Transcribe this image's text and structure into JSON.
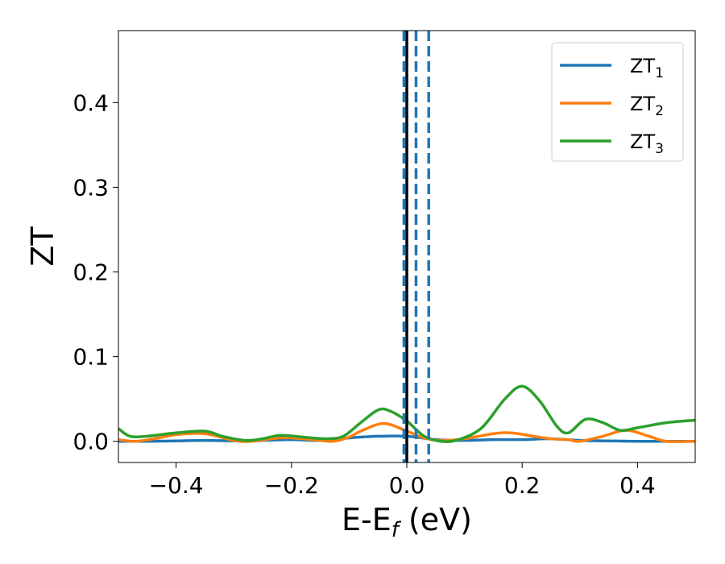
{
  "chart_data": {
    "type": "line",
    "xlabel": "E-E_f (eV)",
    "xlabel_parts": {
      "base": "E-E",
      "sub": "f",
      "tail": " (eV)"
    },
    "ylabel": "ZT",
    "xlim": [
      -0.5,
      0.5
    ],
    "ylim": [
      -0.025,
      0.485
    ],
    "xticks": [
      -0.4,
      -0.2,
      0.0,
      0.2,
      0.4
    ],
    "xtick_labels": [
      "−0.4",
      "−0.2",
      "0.0",
      "0.2",
      "0.4"
    ],
    "yticks": [
      0.0,
      0.1,
      0.2,
      0.3,
      0.4
    ],
    "ytick_labels": [
      "0.0",
      "0.1",
      "0.2",
      "0.3",
      "0.4"
    ],
    "grid": false,
    "legend_position": "top-right",
    "vertical_lines": [
      {
        "x": 0.0,
        "style": "solid",
        "color": "#000000"
      },
      {
        "x": -0.005,
        "style": "dashed",
        "color": "#1f77b4"
      },
      {
        "x": 0.016,
        "style": "dashed",
        "color": "#1f77b4"
      },
      {
        "x": 0.038,
        "style": "dashed",
        "color": "#1f77b4"
      }
    ],
    "series": [
      {
        "name": "ZT_1",
        "label_base": "ZT",
        "label_sub": "1",
        "color": "#1f77b4",
        "x": [
          -0.5,
          -0.45,
          -0.4,
          -0.35,
          -0.3,
          -0.25,
          -0.2,
          -0.15,
          -0.1,
          -0.05,
          0.0,
          0.05,
          0.1,
          0.15,
          0.2,
          0.25,
          0.3,
          0.35,
          0.4,
          0.45,
          0.5
        ],
        "y": [
          0.0,
          0.0,
          0.0005,
          0.001,
          0.0005,
          0.001,
          0.002,
          0.001,
          0.004,
          0.006,
          0.006,
          0.002,
          0.001,
          0.002,
          0.002,
          0.003,
          0.001,
          0.0005,
          0.0,
          0.0,
          0.0
        ]
      },
      {
        "name": "ZT_2",
        "label_base": "ZT",
        "label_sub": "2",
        "color": "#ff7f0e",
        "x": [
          -0.5,
          -0.47,
          -0.43,
          -0.4,
          -0.35,
          -0.3,
          -0.27,
          -0.22,
          -0.18,
          -0.13,
          -0.1,
          -0.08,
          -0.04,
          0.0,
          0.03,
          0.06,
          0.1,
          0.15,
          0.18,
          0.22,
          0.25,
          0.28,
          0.3,
          0.34,
          0.38,
          0.42,
          0.45,
          0.5
        ],
        "y": [
          0.002,
          0.0,
          0.004,
          0.008,
          0.009,
          0.001,
          0.0,
          0.004,
          0.003,
          0.0,
          0.005,
          0.012,
          0.021,
          0.012,
          0.004,
          0.001,
          0.003,
          0.009,
          0.01,
          0.006,
          0.003,
          0.002,
          0.0,
          0.006,
          0.013,
          0.006,
          0.0,
          0.0
        ]
      },
      {
        "name": "ZT_3",
        "label_base": "ZT",
        "label_sub": "3",
        "color": "#2ca02c",
        "x": [
          -0.5,
          -0.48,
          -0.45,
          -0.4,
          -0.35,
          -0.32,
          -0.28,
          -0.25,
          -0.22,
          -0.18,
          -0.14,
          -0.11,
          -0.08,
          -0.05,
          -0.03,
          0.0,
          0.03,
          0.06,
          0.09,
          0.13,
          0.17,
          0.2,
          0.23,
          0.26,
          0.28,
          0.31,
          0.34,
          0.37,
          0.4,
          0.45,
          0.5
        ],
        "y": [
          0.015,
          0.006,
          0.006,
          0.01,
          0.012,
          0.006,
          0.001,
          0.003,
          0.007,
          0.005,
          0.003,
          0.006,
          0.022,
          0.037,
          0.036,
          0.024,
          0.006,
          0.0,
          0.002,
          0.016,
          0.05,
          0.065,
          0.048,
          0.018,
          0.01,
          0.026,
          0.022,
          0.013,
          0.016,
          0.022,
          0.025
        ]
      }
    ]
  }
}
